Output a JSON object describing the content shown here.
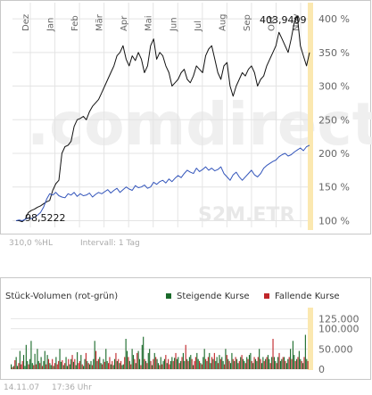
{
  "chart_data": [
    {
      "type": "line",
      "months": [
        "Dez",
        "Jan",
        "Feb",
        "Mär",
        "Apr",
        "Mai",
        "Jun",
        "Jul",
        "Aug",
        "Sep",
        "Okt",
        "Nov"
      ],
      "ytick_labels": [
        "100 %",
        "150 %",
        "200 %",
        "250 %",
        "300 %",
        "350 %",
        "400 %"
      ],
      "ylim": [
        90,
        420
      ],
      "annotations": {
        "high": "403,9409",
        "low": "98,5222"
      },
      "series": [
        {
          "color": "#111111",
          "values": [
            100,
            100,
            98.5,
            102,
            112,
            115,
            117,
            120,
            122,
            125,
            128,
            130,
            145,
            155,
            160,
            200,
            210,
            212,
            218,
            240,
            250,
            252,
            255,
            250,
            262,
            270,
            275,
            280,
            290,
            300,
            310,
            320,
            330,
            345,
            350,
            360,
            340,
            330,
            345,
            338,
            350,
            340,
            320,
            330,
            360,
            370,
            340,
            350,
            345,
            330,
            320,
            300,
            305,
            310,
            320,
            325,
            310,
            305,
            315,
            330,
            325,
            320,
            345,
            355,
            360,
            340,
            320,
            310,
            330,
            335,
            300,
            285,
            300,
            310,
            320,
            315,
            325,
            330,
            320,
            300,
            310,
            315,
            330,
            340,
            350,
            360,
            380,
            370,
            360,
            350,
            370,
            395,
            403.9,
            360,
            345,
            330,
            350
          ]
        },
        {
          "color": "#3355bb",
          "values": [
            100,
            101,
            100,
            102,
            104,
            103,
            105,
            108,
            112,
            120,
            132,
            140,
            138,
            142,
            137,
            135,
            134,
            140,
            138,
            142,
            136,
            140,
            137,
            138,
            141,
            135,
            139,
            142,
            140,
            143,
            146,
            141,
            145,
            148,
            142,
            146,
            150,
            147,
            145,
            152,
            149,
            150,
            153,
            148,
            150,
            157,
            154,
            158,
            160,
            156,
            162,
            158,
            163,
            167,
            164,
            170,
            175,
            172,
            170,
            178,
            173,
            176,
            180,
            175,
            178,
            174,
            176,
            180,
            170,
            165,
            160,
            168,
            172,
            165,
            160,
            165,
            170,
            175,
            168,
            165,
            170,
            178,
            182,
            185,
            188,
            190,
            195,
            198,
            200,
            196,
            198,
            202,
            205,
            208,
            204,
            210,
            212
          ]
        }
      ],
      "xlabel": "",
      "ylabel": "",
      "grid": true,
      "watermark": ".comdirect",
      "watermark_sub": "S2M.ETR"
    },
    {
      "type": "bar",
      "title": "Stück-Volumen (rot-grün)",
      "legend": [
        {
          "name": "Steigende Kurse",
          "color": "#1a6a2a"
        },
        {
          "name": "Fallende Kurse",
          "color": "#c0262a"
        }
      ],
      "ytick_labels": [
        "0",
        "50.000",
        "100.000",
        "125.000"
      ],
      "ylim": [
        0,
        150000
      ],
      "values": [
        12000,
        5000,
        8000,
        22000,
        30000,
        8000,
        15000,
        45000,
        12000,
        20000,
        35000,
        8000,
        60000,
        20000,
        12000,
        25000,
        70000,
        15000,
        10000,
        38000,
        12000,
        50000,
        20000,
        15000,
        30000,
        8000,
        20000,
        45000,
        12000,
        35000,
        25000,
        15000,
        10000,
        25000,
        8000,
        15000,
        30000,
        12000,
        20000,
        50000,
        18000,
        22000,
        10000,
        15000,
        30000,
        8000,
        25000,
        12000,
        25000,
        35000,
        18000,
        25000,
        10000,
        42000,
        15000,
        20000,
        35000,
        12000,
        8000,
        25000,
        40000,
        20000,
        15000,
        12000,
        20000,
        10000,
        25000,
        70000,
        45000,
        20000,
        25000,
        30000,
        15000,
        12000,
        25000,
        18000,
        50000,
        20000,
        15000,
        30000,
        12000,
        20000,
        10000,
        25000,
        40000,
        20000,
        25000,
        15000,
        20000,
        10000,
        12000,
        30000,
        75000,
        45000,
        30000,
        20000,
        12000,
        50000,
        35000,
        25000,
        15000,
        40000,
        45000,
        25000,
        10000,
        60000,
        80000,
        25000,
        20000,
        15000,
        40000,
        50000,
        20000,
        10000,
        25000,
        40000,
        30000,
        25000,
        15000,
        10000,
        30000,
        12000,
        20000,
        25000,
        35000,
        15000,
        25000,
        12000,
        20000,
        30000,
        20000,
        28000,
        40000,
        25000,
        30000,
        15000,
        20000,
        30000,
        40000,
        20000,
        60000,
        25000,
        20000,
        30000,
        35000,
        25000,
        10000,
        20000,
        30000,
        40000,
        25000,
        20000,
        15000,
        12000,
        30000,
        50000,
        25000,
        20000,
        30000,
        40000,
        15000,
        30000,
        25000,
        40000,
        20000,
        30000,
        15000,
        35000,
        25000,
        30000,
        20000,
        12000,
        50000,
        35000,
        25000,
        20000,
        15000,
        40000,
        25000,
        20000,
        30000,
        25000,
        15000,
        20000,
        30000,
        35000,
        25000,
        20000,
        15000,
        30000,
        25000,
        35000,
        40000,
        20000,
        15000,
        30000,
        25000,
        20000,
        30000,
        50000,
        25000,
        15000,
        30000,
        20000,
        25000,
        30000,
        35000,
        25000,
        15000,
        30000,
        75000,
        30000,
        20000,
        15000,
        30000,
        40000,
        20000,
        25000,
        30000,
        30000,
        20000,
        15000,
        25000,
        30000,
        50000,
        25000,
        70000,
        35000,
        20000,
        25000,
        30000,
        45000,
        25000,
        20000,
        15000,
        30000,
        85000,
        25000,
        20000
      ],
      "rising": [
        1,
        0,
        1,
        0,
        1,
        1,
        0,
        1,
        0,
        0,
        1,
        1,
        1,
        1,
        0,
        1,
        1,
        1,
        0,
        1,
        0,
        1,
        1,
        0,
        1,
        0,
        1,
        1,
        0,
        1,
        0,
        1,
        1,
        0,
        1,
        0,
        1,
        0,
        0,
        1,
        1,
        0,
        1,
        0,
        1,
        1,
        0,
        1,
        1,
        0,
        1,
        0,
        1,
        1,
        0,
        0,
        1,
        0,
        1,
        1,
        0,
        1,
        0,
        1,
        1,
        0,
        1,
        1,
        0,
        1,
        0,
        1,
        1,
        0,
        1,
        0,
        1,
        1,
        0,
        0,
        1,
        0,
        1,
        1,
        0,
        1,
        0,
        1,
        0,
        1,
        1,
        0,
        1,
        1,
        0,
        1,
        0,
        1,
        1,
        0,
        1,
        0,
        1,
        1,
        0,
        1,
        1,
        0,
        1,
        0,
        1,
        1,
        0,
        1,
        0,
        1,
        0,
        1,
        1,
        0,
        1,
        0,
        1,
        1,
        0,
        1,
        0,
        0,
        1,
        1,
        0,
        1,
        0,
        1,
        1,
        0,
        1,
        0,
        1,
        1,
        0,
        1,
        0,
        1,
        1,
        0,
        1,
        0,
        0,
        1,
        1,
        0,
        1,
        0,
        1,
        1,
        0,
        1,
        0,
        1,
        1,
        0,
        1,
        0,
        1,
        1,
        0,
        1,
        0,
        1,
        1,
        0,
        1,
        0,
        1,
        0,
        1,
        1,
        0,
        1,
        0,
        1,
        1,
        0,
        1,
        0,
        1,
        1,
        0,
        1,
        0,
        1,
        1,
        0,
        1,
        0,
        1,
        1,
        0,
        1,
        0,
        1,
        1,
        0,
        1,
        0,
        1,
        1,
        0,
        1,
        0,
        1,
        1,
        0,
        1,
        0,
        1,
        1,
        0,
        1,
        0,
        1,
        1,
        0,
        1,
        0,
        1,
        1,
        0,
        1,
        0,
        1,
        1,
        0,
        1,
        0,
        1,
        1,
        0,
        1,
        0,
        1,
        1
      ]
    }
  ],
  "footer": {
    "range_label": "310,0 %HL",
    "interval_label": "Intervall: 1 Tag",
    "date": "14.11.07",
    "time": "17:36 Uhr"
  },
  "colors": {
    "frame": "#c8c8c8",
    "grid": "#e4e4e4",
    "highlight": "#fbe8b0",
    "axis_text": "#666666",
    "watermark": "#efefef",
    "watermark_accent": "#fbe3c4"
  }
}
